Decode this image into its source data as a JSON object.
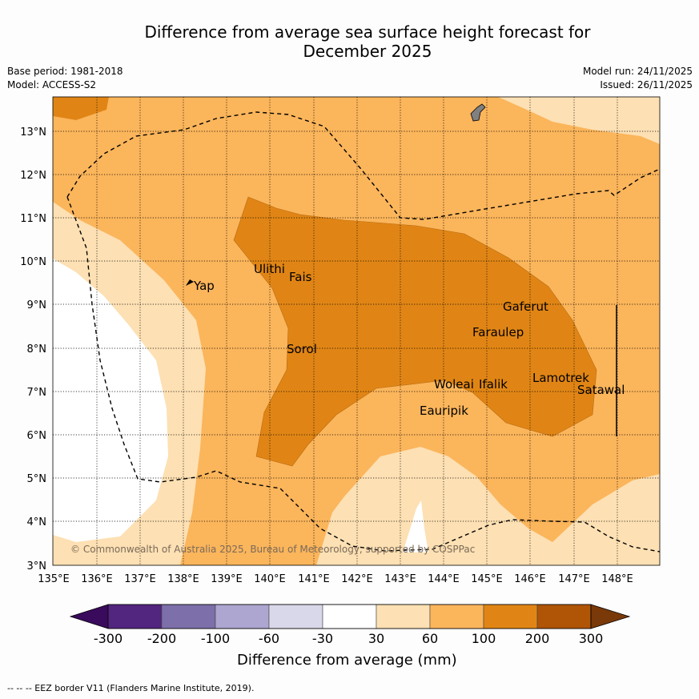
{
  "header": {
    "title_line1": "Difference from average sea surface height forecast for",
    "title_line2": "December 2025",
    "base_period": "Base period: 1981-2018",
    "model": "Model: ACCESS-S2",
    "model_run": "Model run: 24/11/2025",
    "issued": "Issued: 26/11/2025"
  },
  "map": {
    "x_ticks": [
      "135°E",
      "136°E",
      "137°E",
      "138°E",
      "139°E",
      "140°E",
      "141°E",
      "142°E",
      "143°E",
      "144°E",
      "145°E",
      "146°E",
      "147°E",
      "148°E"
    ],
    "y_ticks": [
      "13°N",
      "12°N",
      "11°N",
      "10°N",
      "9°N",
      "8°N",
      "7°N",
      "6°N",
      "5°N",
      "4°N",
      "3°N"
    ],
    "places": [
      "Yap",
      "Ulithi",
      "Fais",
      "Sorol",
      "Gaferut",
      "Faraulep",
      "Woleai",
      "Ifalik",
      "Lamotrek",
      "Satawal",
      "Eauripik"
    ],
    "copyright": "© Commonwealth of Australia 2025, Bureau of Meteorology, supported by COSPPac"
  },
  "colorbar": {
    "title": "Difference from average (mm)",
    "tick_labels": [
      "-300",
      "-200",
      "-100",
      "-60",
      "-30",
      "30",
      "60",
      "100",
      "200",
      "300"
    ],
    "colors": [
      "#3a0a5c",
      "#52257f",
      "#7d6fa9",
      "#aca6d0",
      "#d9d8ea",
      "#ffffff",
      "#fde0b3",
      "#fbb55b",
      "#e08515",
      "#b05406",
      "#7a3908"
    ]
  },
  "footnote": "--  --  -- EEZ border V11 (Flanders Marine Institute, 2019)."
}
